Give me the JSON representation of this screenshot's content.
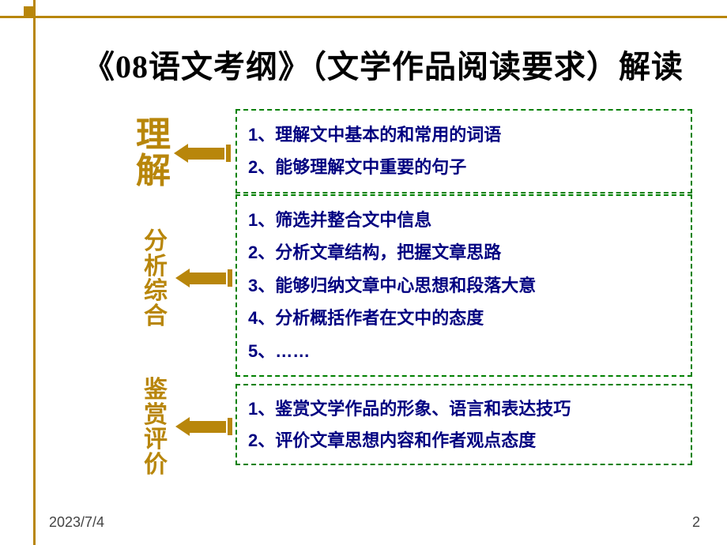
{
  "slide": {
    "title": "《08语文考纲》（文学作品阅读要求）解读",
    "frame_color": "#b8860b",
    "border_color": "#008000",
    "text_color": "#000080",
    "category_color": "#b8860b",
    "categories": [
      {
        "label": "理解",
        "fontsize": 44
      },
      {
        "label": "分析综合",
        "fontsize": 30
      },
      {
        "label": "鉴赏评价",
        "fontsize": 30
      }
    ],
    "boxes": {
      "box1": [
        "1、理解文中基本的和常用的词语",
        "2、能够理解文中重要的句子"
      ],
      "box2": [
        "1、筛选并整合文中信息",
        "2、分析文章结构，把握文章思路",
        "3、能够归纳文章中心思想和段落大意",
        "4、分析概括作者在文中的态度",
        "5、……"
      ],
      "box3": [
        "1、鉴赏文学作品的形象、语言和表达技巧",
        "2、评价文章思想内容和作者观点态度"
      ]
    },
    "footer": {
      "date": "2023/7/4",
      "page": "2"
    }
  }
}
